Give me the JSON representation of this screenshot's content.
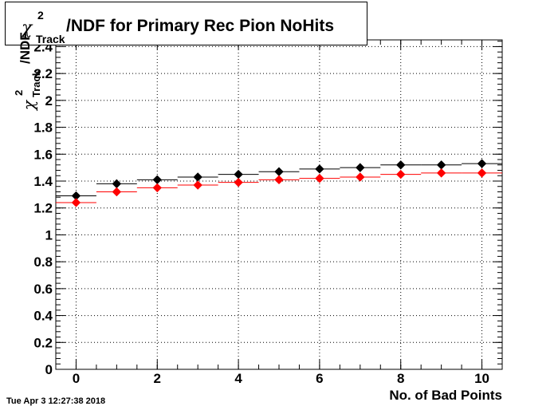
{
  "title": {
    "symbol": "χ",
    "superscript": "2",
    "subscript": "Track",
    "text": "/NDF for Primary Rec Pion NoHits"
  },
  "yaxis_label": {
    "symbol": "χ",
    "superscript": "2",
    "subscript": "Track",
    "text": "/NDF"
  },
  "timestamp": "Tue Apr  3 12:27:38 2018",
  "chart_data": {
    "type": "scatter",
    "title": "χ2 Track /NDF for Primary Rec Pion NoHits",
    "xlabel": "No. of Bad Points",
    "ylabel": "χ2 Track /NDF",
    "xlim": [
      -0.5,
      10.5
    ],
    "ylim": [
      0,
      2.45
    ],
    "grid": true,
    "x_ticks": [
      0,
      2,
      4,
      6,
      8,
      10
    ],
    "x_tick_labels": [
      "0",
      "2",
      "4",
      "6",
      "8",
      "10"
    ],
    "y_ticks": [
      0,
      0.2,
      0.4,
      0.6,
      0.8,
      1,
      1.2,
      1.4,
      1.6,
      1.8,
      2,
      2.2,
      2.4
    ],
    "y_tick_labels": [
      "0",
      "0.2",
      "0.4",
      "0.6",
      "0.8",
      "1",
      "1.2",
      "1.4",
      "1.6",
      "1.8",
      "2",
      "2.2",
      "2.4"
    ],
    "x": [
      0,
      1,
      2,
      3,
      4,
      5,
      6,
      7,
      8,
      9,
      10
    ],
    "series": [
      {
        "color": "#000000",
        "values": [
          1.29,
          1.38,
          1.41,
          1.43,
          1.45,
          1.47,
          1.49,
          1.5,
          1.52,
          1.52,
          1.53
        ]
      },
      {
        "color": "#ff0000",
        "values": [
          1.24,
          1.32,
          1.35,
          1.37,
          1.39,
          1.41,
          1.42,
          1.43,
          1.45,
          1.46,
          1.46
        ]
      }
    ]
  }
}
